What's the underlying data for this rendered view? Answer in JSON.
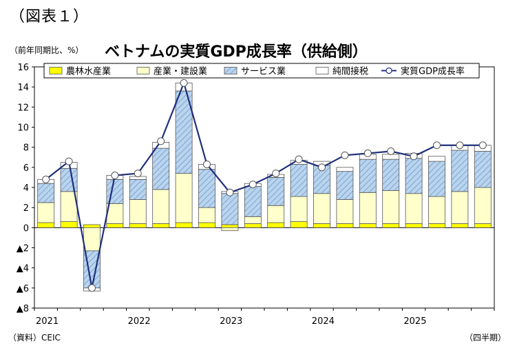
{
  "figure_label": "（図表１）",
  "source_note": "（資料）CEIC",
  "chart_data": {
    "type": "bar",
    "stacked": true,
    "title": "ベトナムの実質GDP成長率（供給側）",
    "ylabel": "（前年同期比、%）",
    "xlabel": "（四半期）",
    "ylim": [
      -8,
      16
    ],
    "yticks": [
      16,
      14,
      12,
      10,
      8,
      6,
      4,
      2,
      0,
      -2,
      -4,
      -6,
      -8
    ],
    "ytick_labels": [
      "16",
      "14",
      "12",
      "10",
      "8",
      "6",
      "4",
      "2",
      "0",
      "▲2",
      "▲4",
      "▲6",
      "▲8"
    ],
    "year_labels": [
      {
        "label": "2021",
        "start_index": 0
      },
      {
        "label": "2022",
        "start_index": 4
      },
      {
        "label": "2023",
        "start_index": 8
      },
      {
        "label": "2024",
        "start_index": 12
      },
      {
        "label": "2025",
        "start_index": 16
      }
    ],
    "categories": [
      "2021Q1",
      "2021Q2",
      "2021Q3",
      "2021Q4",
      "2022Q1",
      "2022Q2",
      "2022Q3",
      "2022Q4",
      "2023Q1",
      "2023Q2",
      "2023Q3",
      "2023Q4",
      "2024Q1",
      "2024Q2",
      "2024Q3",
      "2024Q4",
      "2025Q1",
      "2025Q2",
      "2025Q3",
      "2025Q4"
    ],
    "series": [
      {
        "name": "農林水産業",
        "kind": "bar",
        "color": "#ffff00",
        "values": [
          0.5,
          0.6,
          0.3,
          0.4,
          0.4,
          0.4,
          0.5,
          0.5,
          0.3,
          0.4,
          0.5,
          0.6,
          0.4,
          0.4,
          0.4,
          0.4,
          0.4,
          0.4,
          0.4,
          0.4
        ]
      },
      {
        "name": "産業・建設業",
        "kind": "bar",
        "color": "#ffffcc",
        "values": [
          2.0,
          3.0,
          -2.3,
          2.0,
          2.4,
          3.4,
          4.9,
          1.5,
          -0.3,
          0.7,
          1.7,
          2.5,
          3.0,
          2.4,
          3.1,
          3.3,
          3.0,
          2.7,
          3.2,
          3.6
        ]
      },
      {
        "name": "サービス業",
        "kind": "bar",
        "color": "#a9c8e8",
        "values": [
          1.9,
          2.3,
          -3.7,
          2.4,
          2.0,
          4.1,
          8.2,
          3.8,
          3.1,
          3.0,
          2.8,
          3.2,
          2.8,
          2.8,
          3.3,
          3.1,
          3.5,
          3.5,
          4.1,
          3.6
        ]
      },
      {
        "name": "純間接税",
        "kind": "bar",
        "color": "#ffffff",
        "values": [
          0.4,
          0.6,
          -0.3,
          0.4,
          0.3,
          0.6,
          0.8,
          0.5,
          0.2,
          0.3,
          0.3,
          0.4,
          0.4,
          0.4,
          0.5,
          0.5,
          0.5,
          0.5,
          0.5,
          0.6
        ]
      },
      {
        "name": "実質GDP成長率",
        "kind": "line",
        "color": "#1f2f7a",
        "values": [
          4.8,
          6.6,
          -6.0,
          5.2,
          5.4,
          8.6,
          14.4,
          6.3,
          3.5,
          4.3,
          5.4,
          6.8,
          6.0,
          7.2,
          7.4,
          7.6,
          7.1,
          8.2,
          8.2,
          8.2
        ]
      }
    ],
    "legend_position": "top",
    "grid": false
  }
}
